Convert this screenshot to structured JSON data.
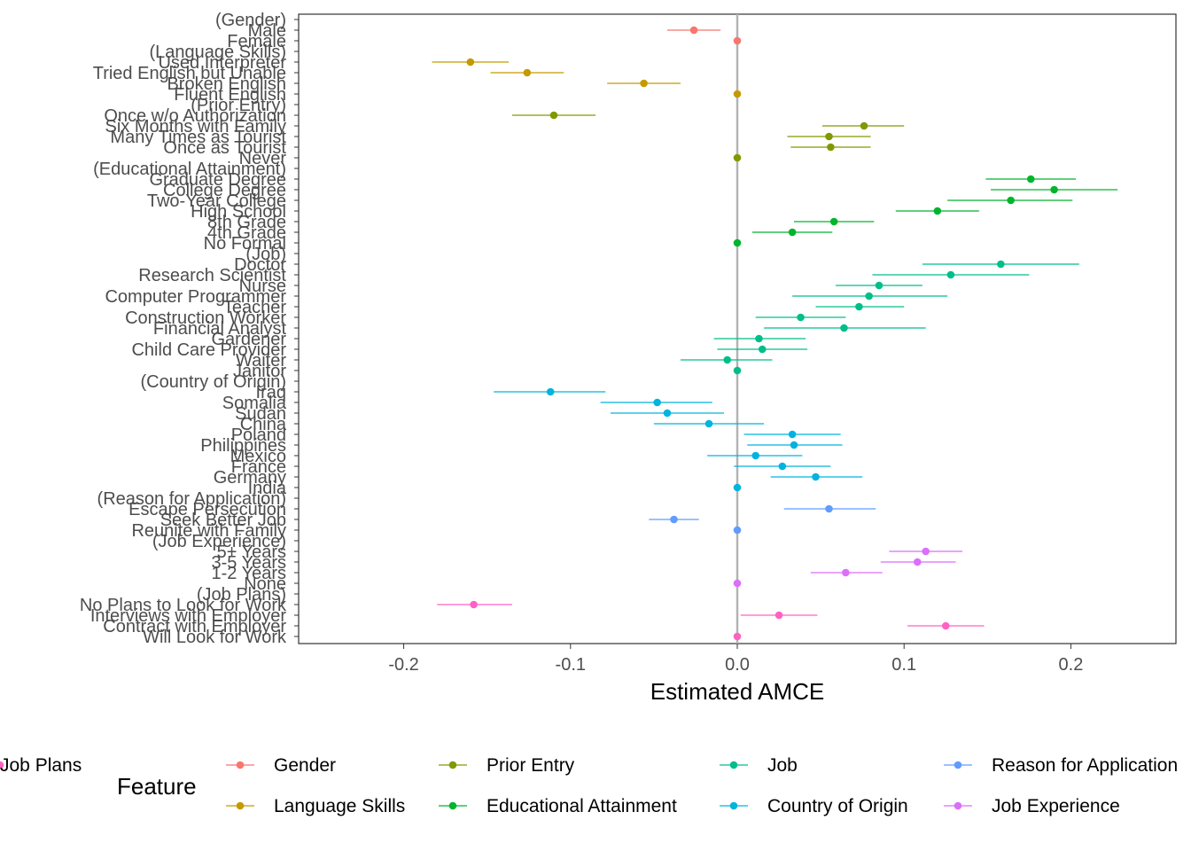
{
  "chart_data": {
    "type": "scatter",
    "subtype": "coefficient-plot-with-error-bars",
    "xlabel": "Estimated AMCE",
    "xlim": [
      -0.263,
      0.263
    ],
    "xticks": [
      -0.2,
      -0.1,
      0.0,
      0.1,
      0.2
    ],
    "xtick_labels": [
      "-0.2",
      "-0.1",
      "0.0",
      "0.1",
      "0.2"
    ],
    "reference_line": 0,
    "grid": false,
    "legend": {
      "title": "Feature",
      "position": "bottom",
      "entries": [
        {
          "name": "Gender",
          "color": "#F8766D"
        },
        {
          "name": "Language Skills",
          "color": "#C49A00"
        },
        {
          "name": "Prior Entry",
          "color": "#7F9A00"
        },
        {
          "name": "Educational Attainment",
          "color": "#00B52C"
        },
        {
          "name": "Job",
          "color": "#00BE8B"
        },
        {
          "name": "Country of Origin",
          "color": "#00B4DF"
        },
        {
          "name": "Reason for Application",
          "color": "#619CFF"
        },
        {
          "name": "Job Experience",
          "color": "#DB6EFB"
        },
        {
          "name": "Job Plans",
          "color": "#FF61C3"
        }
      ]
    },
    "rows": [
      {
        "label": "(Gender)",
        "feature": null,
        "estimate": null,
        "lower": null,
        "upper": null
      },
      {
        "label": "Male",
        "feature": "Gender",
        "estimate": -0.026,
        "lower": -0.042,
        "upper": -0.01
      },
      {
        "label": "Female",
        "feature": "Gender",
        "estimate": 0.0,
        "lower": null,
        "upper": null
      },
      {
        "label": "(Language Skills)",
        "feature": null,
        "estimate": null,
        "lower": null,
        "upper": null
      },
      {
        "label": "Used Interpreter",
        "feature": "Language Skills",
        "estimate": -0.16,
        "lower": -0.183,
        "upper": -0.137
      },
      {
        "label": "Tried English but Unable",
        "feature": "Language Skills",
        "estimate": -0.126,
        "lower": -0.148,
        "upper": -0.104
      },
      {
        "label": "Broken English",
        "feature": "Language Skills",
        "estimate": -0.056,
        "lower": -0.078,
        "upper": -0.034
      },
      {
        "label": "Fluent English",
        "feature": "Language Skills",
        "estimate": 0.0,
        "lower": null,
        "upper": null
      },
      {
        "label": "(Prior Entry)",
        "feature": null,
        "estimate": null,
        "lower": null,
        "upper": null
      },
      {
        "label": "Once w/o Authorization",
        "feature": "Prior Entry",
        "estimate": -0.11,
        "lower": -0.135,
        "upper": -0.085
      },
      {
        "label": "Six Months with Family",
        "feature": "Prior Entry",
        "estimate": 0.076,
        "lower": 0.051,
        "upper": 0.1
      },
      {
        "label": "Many Times as Tourist",
        "feature": "Prior Entry",
        "estimate": 0.055,
        "lower": 0.03,
        "upper": 0.08
      },
      {
        "label": "Once as Tourist",
        "feature": "Prior Entry",
        "estimate": 0.056,
        "lower": 0.032,
        "upper": 0.08
      },
      {
        "label": "Never",
        "feature": "Prior Entry",
        "estimate": 0.0,
        "lower": null,
        "upper": null
      },
      {
        "label": "(Educational Attainment)",
        "feature": null,
        "estimate": null,
        "lower": null,
        "upper": null
      },
      {
        "label": "Graduate Degree",
        "feature": "Educational Attainment",
        "estimate": 0.176,
        "lower": 0.149,
        "upper": 0.203
      },
      {
        "label": "College Degree",
        "feature": "Educational Attainment",
        "estimate": 0.19,
        "lower": 0.152,
        "upper": 0.228
      },
      {
        "label": "Two-Year College",
        "feature": "Educational Attainment",
        "estimate": 0.164,
        "lower": 0.126,
        "upper": 0.201
      },
      {
        "label": "High School",
        "feature": "Educational Attainment",
        "estimate": 0.12,
        "lower": 0.095,
        "upper": 0.145
      },
      {
        "label": "8th Grade",
        "feature": "Educational Attainment",
        "estimate": 0.058,
        "lower": 0.034,
        "upper": 0.082
      },
      {
        "label": "4th Grade",
        "feature": "Educational Attainment",
        "estimate": 0.033,
        "lower": 0.009,
        "upper": 0.057
      },
      {
        "label": "No Formal",
        "feature": "Educational Attainment",
        "estimate": 0.0,
        "lower": null,
        "upper": null
      },
      {
        "label": "(Job)",
        "feature": null,
        "estimate": null,
        "lower": null,
        "upper": null
      },
      {
        "label": "Doctor",
        "feature": "Job",
        "estimate": 0.158,
        "lower": 0.111,
        "upper": 0.205
      },
      {
        "label": "Research Scientist",
        "feature": "Job",
        "estimate": 0.128,
        "lower": 0.081,
        "upper": 0.175
      },
      {
        "label": "Nurse",
        "feature": "Job",
        "estimate": 0.085,
        "lower": 0.059,
        "upper": 0.111
      },
      {
        "label": "Computer Programmer",
        "feature": "Job",
        "estimate": 0.079,
        "lower": 0.033,
        "upper": 0.126
      },
      {
        "label": "Teacher",
        "feature": "Job",
        "estimate": 0.073,
        "lower": 0.047,
        "upper": 0.1
      },
      {
        "label": "Construction Worker",
        "feature": "Job",
        "estimate": 0.038,
        "lower": 0.011,
        "upper": 0.065
      },
      {
        "label": "Financial Analyst",
        "feature": "Job",
        "estimate": 0.064,
        "lower": 0.016,
        "upper": 0.113
      },
      {
        "label": "Gardener",
        "feature": "Job",
        "estimate": 0.013,
        "lower": -0.014,
        "upper": 0.041
      },
      {
        "label": "Child Care Provider",
        "feature": "Job",
        "estimate": 0.015,
        "lower": -0.012,
        "upper": 0.042
      },
      {
        "label": "Waiter",
        "feature": "Job",
        "estimate": -0.006,
        "lower": -0.034,
        "upper": 0.021
      },
      {
        "label": "Janitor",
        "feature": "Job",
        "estimate": 0.0,
        "lower": null,
        "upper": null
      },
      {
        "label": "(Country of Origin)",
        "feature": null,
        "estimate": null,
        "lower": null,
        "upper": null
      },
      {
        "label": "Iraq",
        "feature": "Country of Origin",
        "estimate": -0.112,
        "lower": -0.146,
        "upper": -0.079
      },
      {
        "label": "Somalia",
        "feature": "Country of Origin",
        "estimate": -0.048,
        "lower": -0.082,
        "upper": -0.015
      },
      {
        "label": "Sudan",
        "feature": "Country of Origin",
        "estimate": -0.042,
        "lower": -0.076,
        "upper": -0.008
      },
      {
        "label": "China",
        "feature": "Country of Origin",
        "estimate": -0.017,
        "lower": -0.05,
        "upper": 0.016
      },
      {
        "label": "Poland",
        "feature": "Country of Origin",
        "estimate": 0.033,
        "lower": 0.004,
        "upper": 0.062
      },
      {
        "label": "Philippines",
        "feature": "Country of Origin",
        "estimate": 0.034,
        "lower": 0.006,
        "upper": 0.063
      },
      {
        "label": "Mexico",
        "feature": "Country of Origin",
        "estimate": 0.011,
        "lower": -0.018,
        "upper": 0.039
      },
      {
        "label": "France",
        "feature": "Country of Origin",
        "estimate": 0.027,
        "lower": -0.002,
        "upper": 0.056
      },
      {
        "label": "Germany",
        "feature": "Country of Origin",
        "estimate": 0.047,
        "lower": 0.02,
        "upper": 0.075
      },
      {
        "label": "India",
        "feature": "Country of Origin",
        "estimate": 0.0,
        "lower": null,
        "upper": null
      },
      {
        "label": "(Reason for Application)",
        "feature": null,
        "estimate": null,
        "lower": null,
        "upper": null
      },
      {
        "label": "Escape Persecution",
        "feature": "Reason for Application",
        "estimate": 0.055,
        "lower": 0.028,
        "upper": 0.083
      },
      {
        "label": "Seek Better Job",
        "feature": "Reason for Application",
        "estimate": -0.038,
        "lower": -0.053,
        "upper": -0.023
      },
      {
        "label": "Reunite with Family",
        "feature": "Reason for Application",
        "estimate": 0.0,
        "lower": null,
        "upper": null
      },
      {
        "label": "(Job Experience)",
        "feature": null,
        "estimate": null,
        "lower": null,
        "upper": null
      },
      {
        "label": "5+ Years",
        "feature": "Job Experience",
        "estimate": 0.113,
        "lower": 0.091,
        "upper": 0.135
      },
      {
        "label": "3-5 Years",
        "feature": "Job Experience",
        "estimate": 0.108,
        "lower": 0.086,
        "upper": 0.131
      },
      {
        "label": "1-2 Years",
        "feature": "Job Experience",
        "estimate": 0.065,
        "lower": 0.044,
        "upper": 0.087
      },
      {
        "label": "None",
        "feature": "Job Experience",
        "estimate": 0.0,
        "lower": null,
        "upper": null
      },
      {
        "label": "(Job Plans)",
        "feature": null,
        "estimate": null,
        "lower": null,
        "upper": null
      },
      {
        "label": "No Plans to Look for Work",
        "feature": "Job Plans",
        "estimate": -0.158,
        "lower": -0.18,
        "upper": -0.135
      },
      {
        "label": "Interviews with Employer",
        "feature": "Job Plans",
        "estimate": 0.025,
        "lower": 0.002,
        "upper": 0.048
      },
      {
        "label": "Contract with Employer",
        "feature": "Job Plans",
        "estimate": 0.125,
        "lower": 0.102,
        "upper": 0.148
      },
      {
        "label": "Will Look for Work",
        "feature": "Job Plans",
        "estimate": 0.0,
        "lower": null,
        "upper": null
      }
    ]
  }
}
